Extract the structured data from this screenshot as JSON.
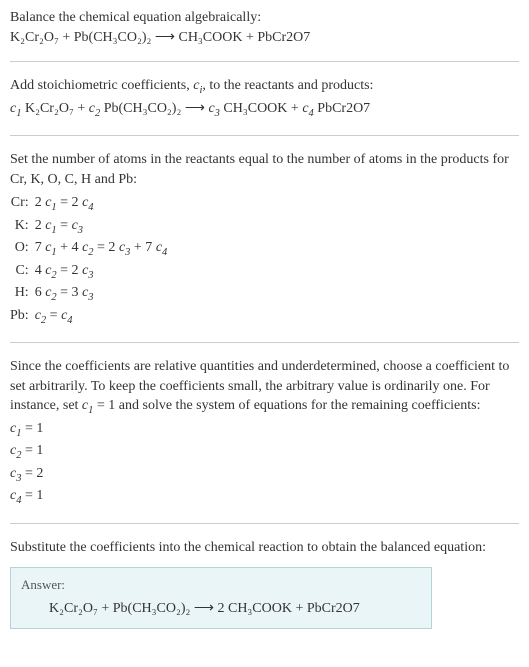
{
  "intro": {
    "line1": "Balance the chemical equation algebraically:",
    "equation": "K₂Cr₂O₇ + Pb(CH₃CO₂)₂  ⟶  CH₃COOK + PbCr2O7"
  },
  "step1": {
    "line1_a": "Add stoichiometric coefficients, ",
    "line1_ci": "c",
    "line1_ci_sub": "i",
    "line1_b": ", to the reactants and products:",
    "equation_pre_c1": "c",
    "equation_c1sub": "1",
    "equation_mid1": " K₂Cr₂O₇ + ",
    "equation_c2": "c",
    "equation_c2sub": "2",
    "equation_mid2": " Pb(CH₃CO₂)₂  ⟶  ",
    "equation_c3": "c",
    "equation_c3sub": "3",
    "equation_mid3": " CH₃COOK + ",
    "equation_c4": "c",
    "equation_c4sub": "4",
    "equation_end": " PbCr2O7"
  },
  "step2": {
    "intro": "Set the number of atoms in the reactants equal to the number of atoms in the products for Cr, K, O, C, H and Pb:",
    "rows": [
      {
        "el": "Cr:",
        "eq_a": "2 ",
        "eq_c1": "c",
        "eq_c1s": "1",
        "eq_mid": " = 2 ",
        "eq_c2": "c",
        "eq_c2s": "4",
        "eq_tail": ""
      },
      {
        "el": "K:",
        "eq_a": "2 ",
        "eq_c1": "c",
        "eq_c1s": "1",
        "eq_mid": " = ",
        "eq_c2": "c",
        "eq_c2s": "3",
        "eq_tail": ""
      },
      {
        "el": "O:",
        "eq_a": "7 ",
        "eq_c1": "c",
        "eq_c1s": "1",
        "eq_mid": " + 4 ",
        "eq_c2": "c",
        "eq_c2s": "2",
        "eq_tail_a": " = 2 ",
        "eq_c3": "c",
        "eq_c3s": "3",
        "eq_tail_b": " + 7 ",
        "eq_c4": "c",
        "eq_c4s": "4"
      },
      {
        "el": "C:",
        "eq_a": "4 ",
        "eq_c1": "c",
        "eq_c1s": "2",
        "eq_mid": " = 2 ",
        "eq_c2": "c",
        "eq_c2s": "3",
        "eq_tail": ""
      },
      {
        "el": "H:",
        "eq_a": "6 ",
        "eq_c1": "c",
        "eq_c1s": "2",
        "eq_mid": " = 3 ",
        "eq_c2": "c",
        "eq_c2s": "3",
        "eq_tail": ""
      },
      {
        "el": "Pb:",
        "eq_a": "",
        "eq_c1": "c",
        "eq_c1s": "2",
        "eq_mid": " = ",
        "eq_c2": "c",
        "eq_c2s": "4",
        "eq_tail": ""
      }
    ]
  },
  "step3": {
    "intro_a": "Since the coefficients are relative quantities and underdetermined, choose a coefficient to set arbitrarily. To keep the coefficients small, the arbitrary value is ordinarily one. For instance, set ",
    "intro_c": "c",
    "intro_cs": "1",
    "intro_b": " = 1 and solve the system of equations for the remaining coefficients:",
    "coeffs": [
      {
        "c": "c",
        "s": "1",
        "v": " = 1"
      },
      {
        "c": "c",
        "s": "2",
        "v": " = 1"
      },
      {
        "c": "c",
        "s": "3",
        "v": " = 2"
      },
      {
        "c": "c",
        "s": "4",
        "v": " = 1"
      }
    ]
  },
  "step4": {
    "intro": "Substitute the coefficients into the chemical reaction to obtain the balanced equation:",
    "answer_label": "Answer:",
    "answer_eq": "K₂Cr₂O₇ + Pb(CH₃CO₂)₂  ⟶  2 CH₃COOK + PbCr2O7"
  }
}
